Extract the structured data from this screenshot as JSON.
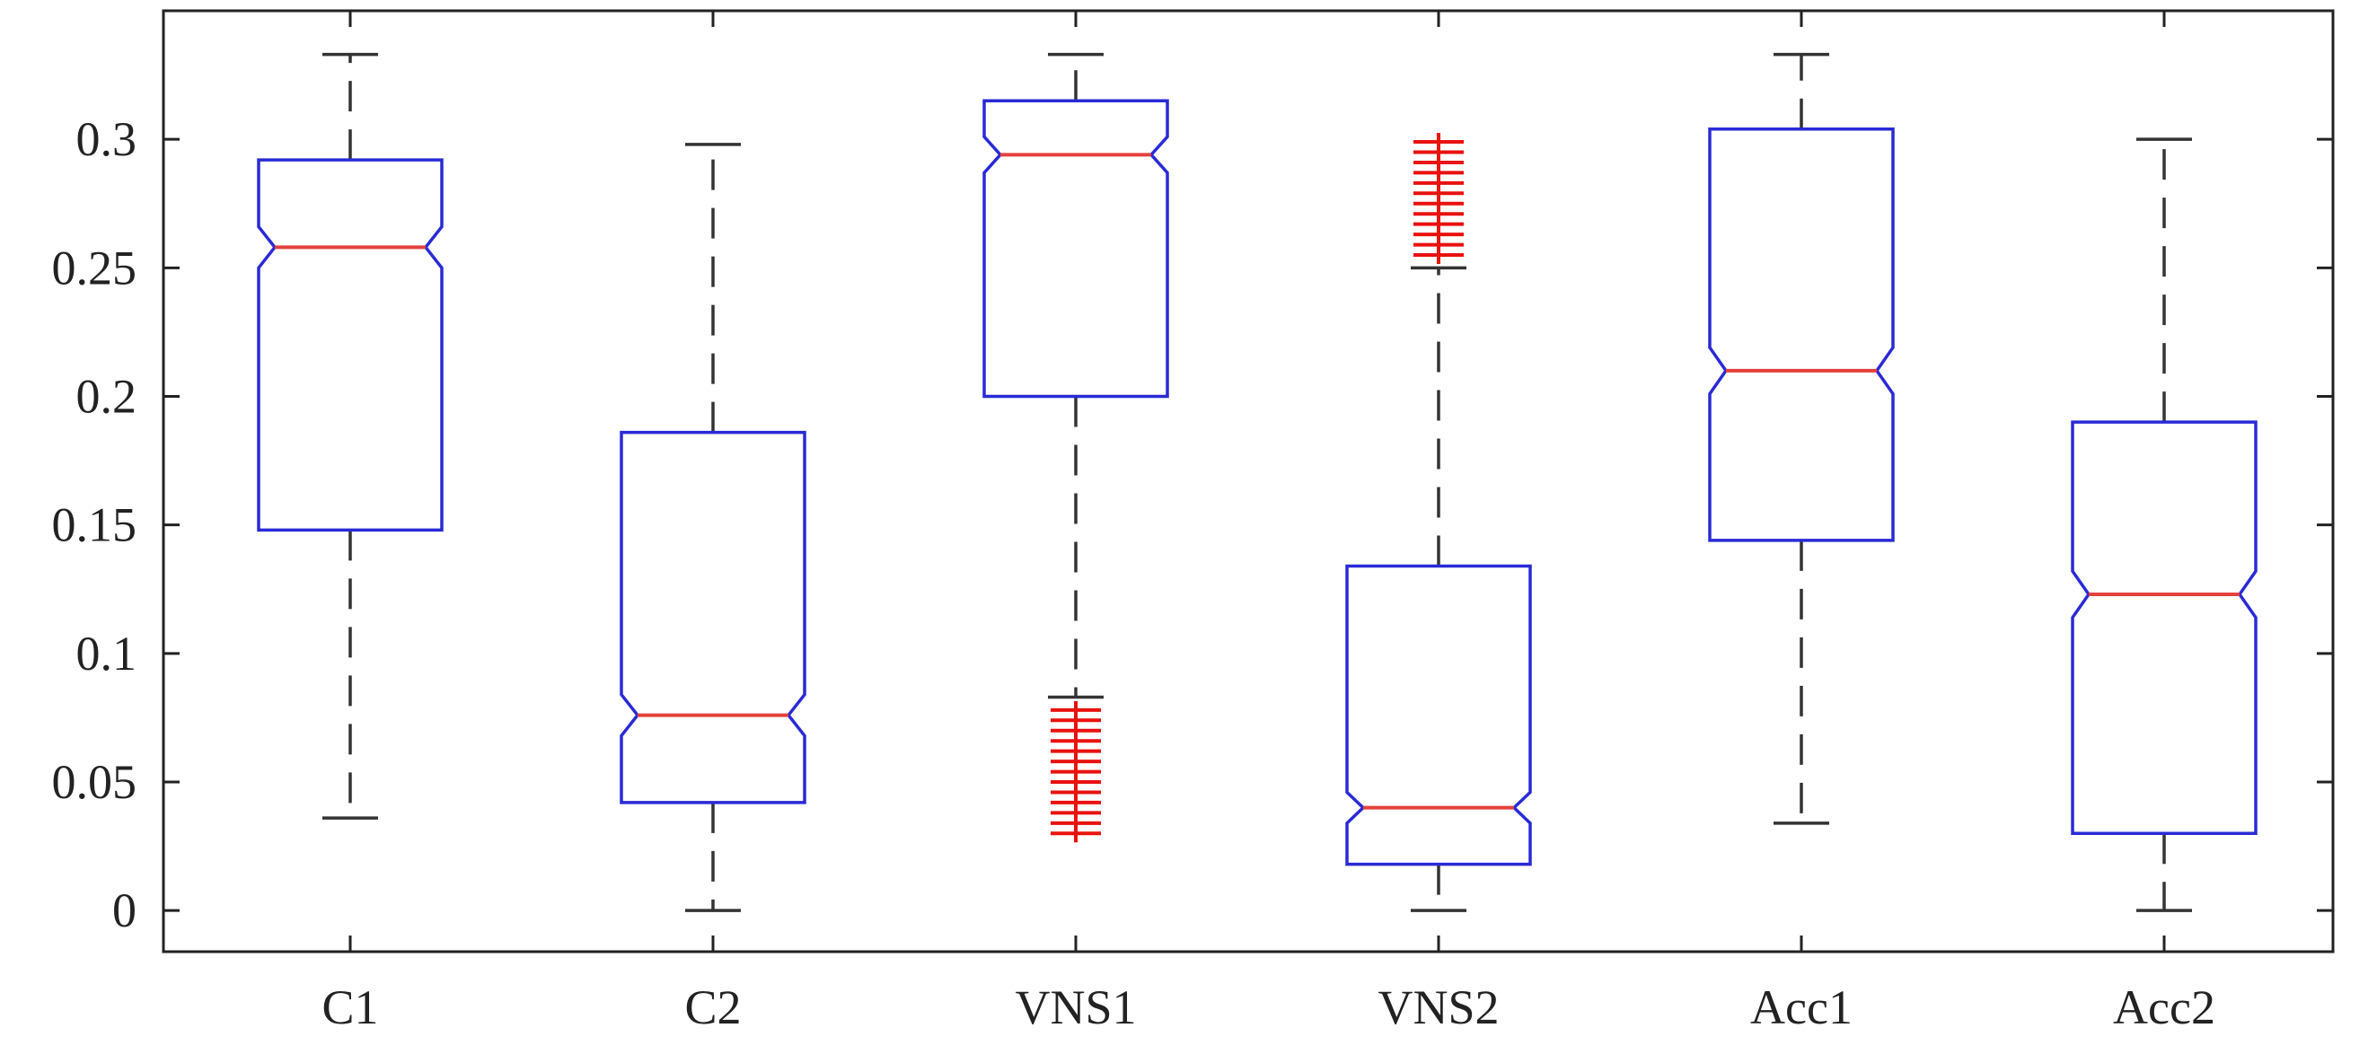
{
  "chart_data": {
    "type": "box",
    "title": "",
    "xlabel": "",
    "ylabel": "",
    "ylim": [
      -0.016,
      0.35
    ],
    "yticks": [
      0,
      0.05,
      0.1,
      0.15,
      0.2,
      0.25,
      0.3
    ],
    "ytick_labels": [
      "0",
      "0.05",
      "0.1",
      "0.15",
      "0.2",
      "0.25",
      "0.3"
    ],
    "notched": true,
    "grid": false,
    "categories": [
      "C1",
      "C2",
      "VNS1",
      "VNS2",
      "Acc1",
      "Acc2"
    ],
    "boxes": [
      {
        "label": "C1",
        "whisker_low": 0.036,
        "q1": 0.148,
        "median": 0.258,
        "q3": 0.292,
        "whisker_high": 0.333,
        "notch_low": 0.25,
        "notch_high": 0.266,
        "outliers": []
      },
      {
        "label": "C2",
        "whisker_low": 0.0,
        "q1": 0.042,
        "median": 0.076,
        "q3": 0.186,
        "whisker_high": 0.298,
        "notch_low": 0.068,
        "notch_high": 0.084,
        "outliers": []
      },
      {
        "label": "VNS1",
        "whisker_low": 0.083,
        "q1": 0.2,
        "median": 0.294,
        "q3": 0.315,
        "whisker_high": 0.333,
        "notch_low": 0.287,
        "notch_high": 0.301,
        "outliers": [
          0.03,
          0.034,
          0.038,
          0.042,
          0.046,
          0.05,
          0.054,
          0.058,
          0.062,
          0.066,
          0.07,
          0.074,
          0.078
        ]
      },
      {
        "label": "VNS2",
        "whisker_low": 0.0,
        "q1": 0.018,
        "median": 0.04,
        "q3": 0.134,
        "whisker_high": 0.25,
        "notch_low": 0.034,
        "notch_high": 0.046,
        "outliers": [
          0.255,
          0.259,
          0.263,
          0.267,
          0.271,
          0.275,
          0.279,
          0.283,
          0.287,
          0.291,
          0.295,
          0.299
        ]
      },
      {
        "label": "Acc1",
        "whisker_low": 0.034,
        "q1": 0.144,
        "median": 0.21,
        "q3": 0.304,
        "whisker_high": 0.333,
        "notch_low": 0.201,
        "notch_high": 0.219,
        "outliers": []
      },
      {
        "label": "Acc2",
        "whisker_low": 0.0,
        "q1": 0.03,
        "median": 0.123,
        "q3": 0.19,
        "whisker_high": 0.3,
        "notch_low": 0.114,
        "notch_high": 0.132,
        "outliers": []
      }
    ],
    "colors": {
      "box": "#2a2ad6",
      "median": "#e3413c",
      "whisker": "#333333",
      "outlier": "#e8120f",
      "axis": "#222222",
      "text": "#222222"
    }
  }
}
